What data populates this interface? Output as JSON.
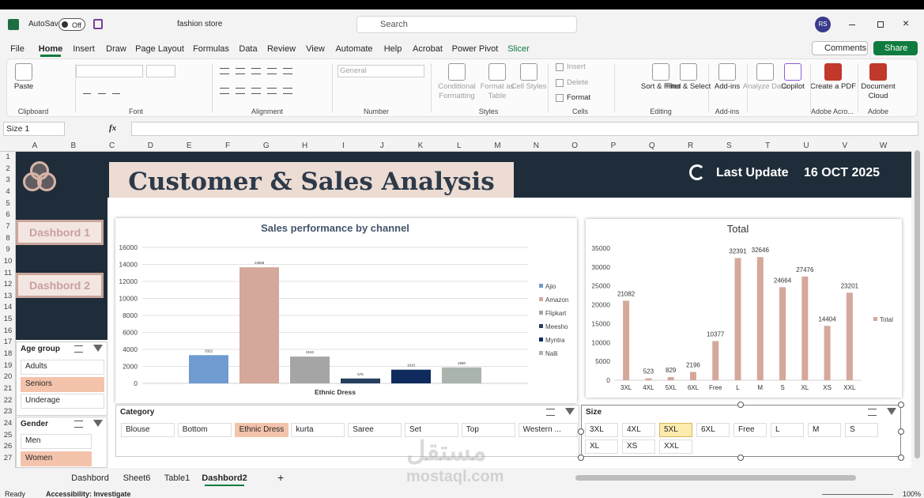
{
  "title_bar": {
    "autosave": "AutoSave",
    "toggle": "Off",
    "file_name": "fashion store",
    "search": "Search",
    "user": "RS"
  },
  "menu": [
    "File",
    "Home",
    "Insert",
    "Draw",
    "Page Layout",
    "Formulas",
    "Data",
    "Review",
    "View",
    "Automate",
    "Help",
    "Acrobat",
    "Power Pivot",
    "Slicer"
  ],
  "actions": {
    "comments": "Comments",
    "share": "Share"
  },
  "ribbon": {
    "buttons": [
      "Paste",
      "Conditional Formatting",
      "Format as Table",
      "Cell Styles",
      "Insert",
      "Delete",
      "Format",
      "Sort & Filter",
      "Find & Select",
      "Add-ins",
      "Analyze Data",
      "Copilot",
      "Create a PDF",
      "Document Cloud"
    ],
    "number_format": "General",
    "groups": [
      "Clipboard",
      "Font",
      "Alignment",
      "Number",
      "Styles",
      "Cells",
      "Editing",
      "Add-ins",
      "Adobe Acro...",
      "Adobe"
    ]
  },
  "formula_bar": {
    "name_box": "Size 1",
    "fx": "fx"
  },
  "columns": [
    "A",
    "B",
    "C",
    "D",
    "E",
    "F",
    "G",
    "H",
    "I",
    "J",
    "K",
    "L",
    "M",
    "N",
    "O",
    "P",
    "Q",
    "R",
    "S",
    "T",
    "U",
    "V",
    "W"
  ],
  "rows": [
    1,
    2,
    3,
    4,
    5,
    6,
    7,
    8,
    9,
    10,
    11,
    12,
    13,
    14,
    15,
    16,
    17,
    18,
    19,
    20,
    21,
    22,
    23,
    24,
    25,
    26,
    27
  ],
  "dashboard": {
    "title": "Customer & Sales Analysis",
    "last_update_label": "Last Update",
    "last_update_date": "16 OCT 2025",
    "nav": [
      "Dashbord 1",
      "Dashbord 2"
    ]
  },
  "chart_data": [
    {
      "type": "bar",
      "title": "Sales performance by channel",
      "categories": [
        "Ethnic Dress"
      ],
      "series": [
        {
          "name": "Ajio",
          "color": "#6f9bd1",
          "values": [
            3322
          ]
        },
        {
          "name": "Amazon",
          "color": "#d4a89a",
          "values": [
            13658
          ]
        },
        {
          "name": "Flipkart",
          "color": "#a5a5a5",
          "values": [
            3152
          ]
        },
        {
          "name": "Meesho",
          "color": "#27405f",
          "values": [
            576
          ]
        },
        {
          "name": "Myntra",
          "color": "#0f2a5c",
          "values": [
            1610
          ]
        },
        {
          "name": "Nalli",
          "color": "#a9b4ad",
          "values": [
            1880
          ]
        }
      ],
      "ylim": [
        0,
        16000
      ],
      "yticks": [
        0,
        2000,
        4000,
        6000,
        8000,
        10000,
        12000,
        14000,
        16000
      ],
      "grid": true,
      "legend": "right",
      "data_labels": true
    },
    {
      "type": "bar",
      "title": "Total",
      "categories": [
        "3XL",
        "4XL",
        "5XL",
        "6XL",
        "Free",
        "L",
        "M",
        "S",
        "XL",
        "XS",
        "XXL"
      ],
      "series": [
        {
          "name": "Total",
          "color": "#d4a89a",
          "values": [
            21082,
            523,
            829,
            2196,
            10377,
            32391,
            32646,
            24664,
            27476,
            14404,
            23201
          ]
        }
      ],
      "ylim": [
        0,
        35000
      ],
      "yticks": [
        0,
        5000,
        10000,
        15000,
        20000,
        25000,
        30000,
        35000
      ],
      "grid": false,
      "legend": "right",
      "data_labels": true
    }
  ],
  "slicers": [
    {
      "title": "Age group",
      "items": [
        {
          "label": "Adults",
          "selected": false
        },
        {
          "label": "Seniors",
          "selected": true
        },
        {
          "label": "Underage",
          "selected": false
        }
      ]
    },
    {
      "title": "Gender",
      "items": [
        {
          "label": "Men",
          "selected": false
        },
        {
          "label": "Women",
          "selected": true
        }
      ]
    },
    {
      "title": "Category",
      "items": [
        {
          "label": "Blouse",
          "selected": false
        },
        {
          "label": "Bottom",
          "selected": false
        },
        {
          "label": "Ethnic Dress",
          "selected": true
        },
        {
          "label": "kurta",
          "selected": false
        },
        {
          "label": "Saree",
          "selected": false
        },
        {
          "label": "Set",
          "selected": false
        },
        {
          "label": "Top",
          "selected": false
        },
        {
          "label": "Western ...",
          "selected": false
        }
      ]
    },
    {
      "title": "Size",
      "items": [
        {
          "label": "3XL",
          "selected": false
        },
        {
          "label": "4XL",
          "selected": false
        },
        {
          "label": "5XL",
          "selected": false,
          "hovered": true
        },
        {
          "label": "6XL",
          "selected": false
        },
        {
          "label": "Free",
          "selected": false
        },
        {
          "label": "L",
          "selected": false
        },
        {
          "label": "M",
          "selected": false
        },
        {
          "label": "S",
          "selected": false
        },
        {
          "label": "XL",
          "selected": false
        },
        {
          "label": "XS",
          "selected": false
        },
        {
          "label": "XXL",
          "selected": false
        }
      ]
    }
  ],
  "sheet_tabs": [
    {
      "label": "Dashbord",
      "active": false
    },
    {
      "label": "Sheet6",
      "active": false
    },
    {
      "label": "Table1",
      "active": false
    },
    {
      "label": "Dashbord2",
      "active": true
    }
  ],
  "status_bar": {
    "ready": "Ready",
    "accessibility": "Accessibility: Investigate",
    "zoom": "100%"
  },
  "watermark": {
    "arabic": "مستقل",
    "latin": "mostaql.com"
  }
}
